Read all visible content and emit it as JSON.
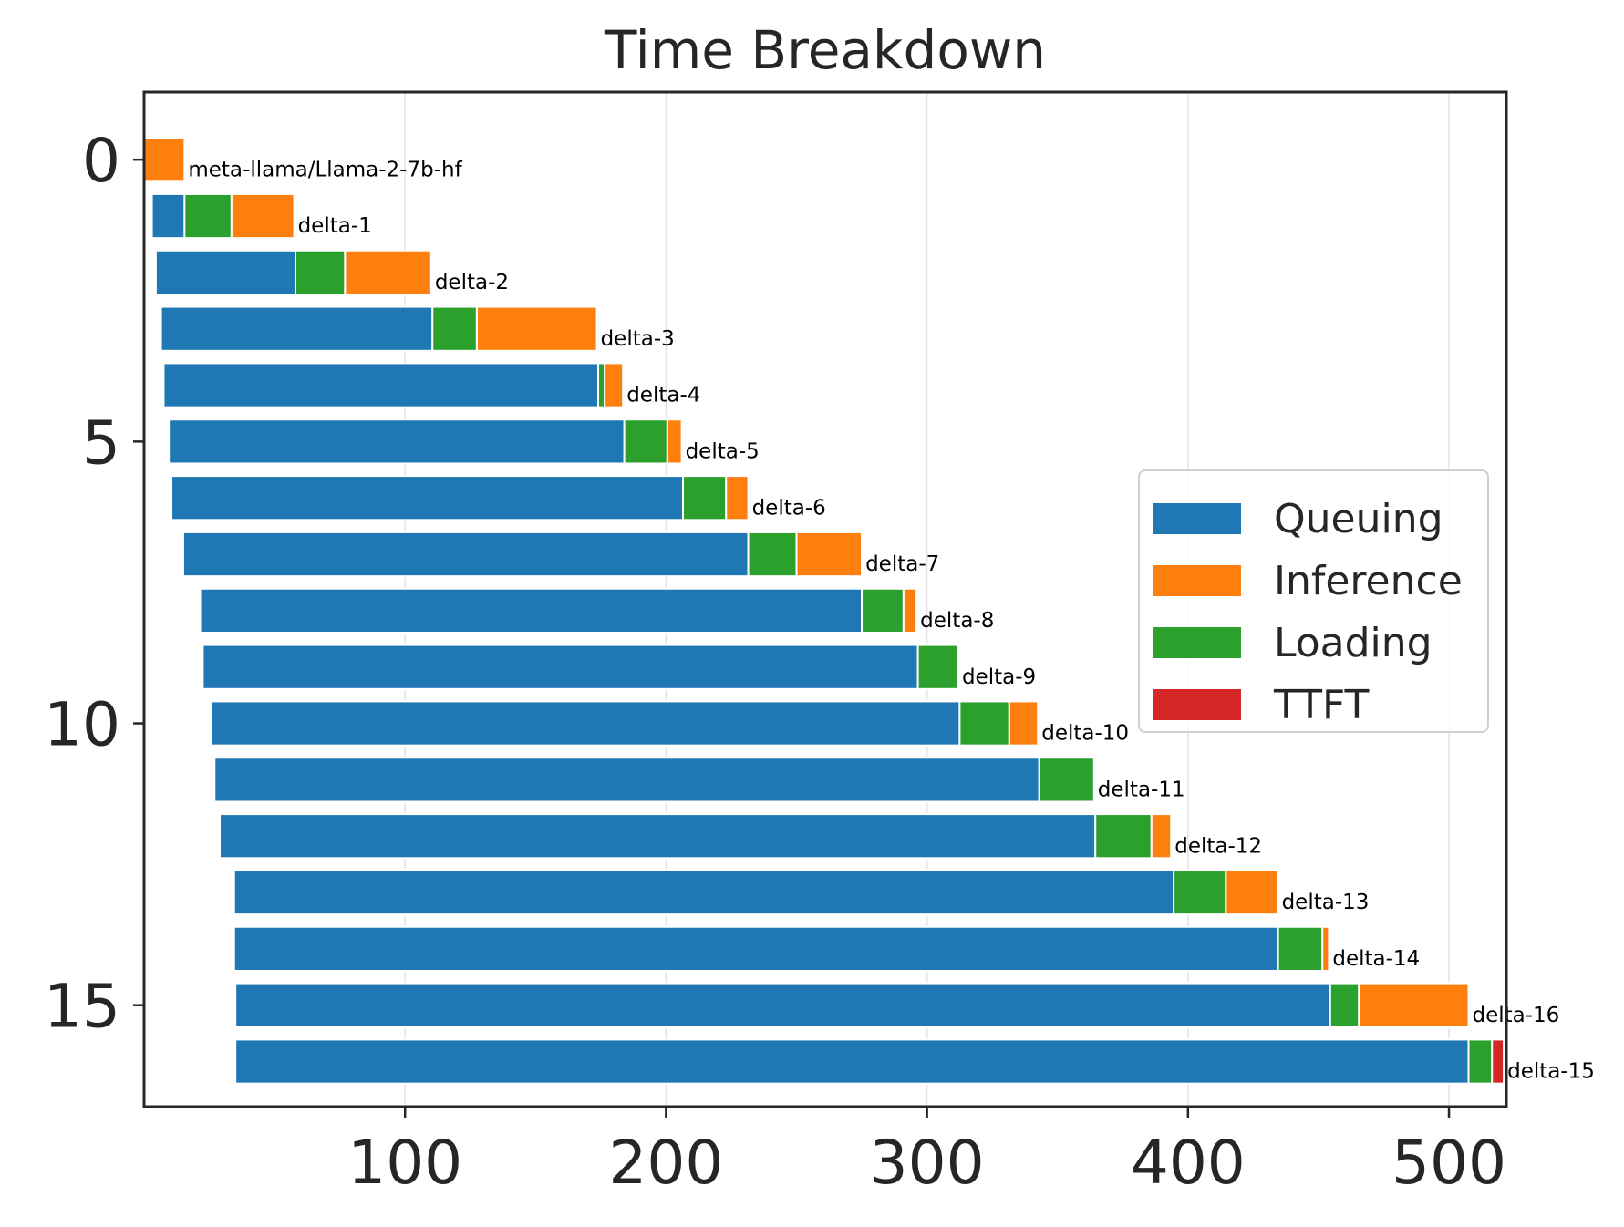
{
  "chart_data": {
    "type": "bar",
    "orientation": "horizontal",
    "stacked": true,
    "title": "Time Breakdown",
    "xlabel": "",
    "ylabel": "",
    "xlim": [
      0,
      522
    ],
    "ylim": [
      16.8,
      -1.2
    ],
    "y_inverted": true,
    "x_ticks": [
      100,
      200,
      300,
      400,
      500
    ],
    "y_ticks": [
      0,
      5,
      10,
      15
    ],
    "grid": "x",
    "legend_position": "center-right",
    "legend": [
      {
        "name": "Queuing",
        "color": "#1f77b4"
      },
      {
        "name": "Inference",
        "color": "#ff7f0e"
      },
      {
        "name": "Loading",
        "color": "#2ca02c"
      },
      {
        "name": "TTFT",
        "color": "#d62728"
      }
    ],
    "rows": [
      {
        "y": 0,
        "label": "meta-llama/Llama-2-7b-hf",
        "start": 0,
        "queuing": 0,
        "loading": 0,
        "inference": 15.5,
        "ttft": 0
      },
      {
        "y": 1,
        "label": "delta-1",
        "start": 3,
        "queuing": 12.5,
        "loading": 18,
        "inference": 24,
        "ttft": 0
      },
      {
        "y": 2,
        "label": "delta-2",
        "start": 4.5,
        "queuing": 53.5,
        "loading": 19,
        "inference": 33,
        "ttft": 0
      },
      {
        "y": 3,
        "label": "delta-3",
        "start": 6.5,
        "queuing": 104,
        "loading": 17,
        "inference": 46,
        "ttft": 0
      },
      {
        "y": 4,
        "label": "delta-4",
        "start": 7.5,
        "queuing": 166.5,
        "loading": 2.5,
        "inference": 7,
        "ttft": 0
      },
      {
        "y": 5,
        "label": "delta-5",
        "start": 9.5,
        "queuing": 174.5,
        "loading": 16.5,
        "inference": 5.5,
        "ttft": 0
      },
      {
        "y": 6,
        "label": "delta-6",
        "start": 10.5,
        "queuing": 196,
        "loading": 16.5,
        "inference": 8.5,
        "ttft": 0
      },
      {
        "y": 7,
        "label": "delta-7",
        "start": 15,
        "queuing": 216.5,
        "loading": 18.5,
        "inference": 25,
        "ttft": 0
      },
      {
        "y": 8,
        "label": "delta-8",
        "start": 21.5,
        "queuing": 253.5,
        "loading": 16,
        "inference": 5,
        "ttft": 0
      },
      {
        "y": 9,
        "label": "delta-9",
        "start": 22.5,
        "queuing": 274,
        "loading": 15.5,
        "inference": 0,
        "ttft": 0
      },
      {
        "y": 10,
        "label": "delta-10",
        "start": 25.5,
        "queuing": 287,
        "loading": 19,
        "inference": 11,
        "ttft": 0
      },
      {
        "y": 11,
        "label": "delta-11",
        "start": 27,
        "queuing": 316,
        "loading": 21,
        "inference": 0,
        "ttft": 0
      },
      {
        "y": 12,
        "label": "delta-12",
        "start": 29,
        "queuing": 335.5,
        "loading": 21.5,
        "inference": 7.5,
        "ttft": 0
      },
      {
        "y": 13,
        "label": "delta-13",
        "start": 34.5,
        "queuing": 360,
        "loading": 20,
        "inference": 20,
        "ttft": 0
      },
      {
        "y": 14,
        "label": "delta-14",
        "start": 34.5,
        "queuing": 400,
        "loading": 17,
        "inference": 2.5,
        "ttft": 0
      },
      {
        "y": 15,
        "label": "delta-16",
        "start": 35,
        "queuing": 419.5,
        "loading": 11,
        "inference": 42,
        "ttft": 0
      },
      {
        "y": 16,
        "label": "delta-15",
        "start": 35,
        "queuing": 472.5,
        "loading": 9,
        "inference": 0,
        "ttft": 4.5
      }
    ]
  }
}
